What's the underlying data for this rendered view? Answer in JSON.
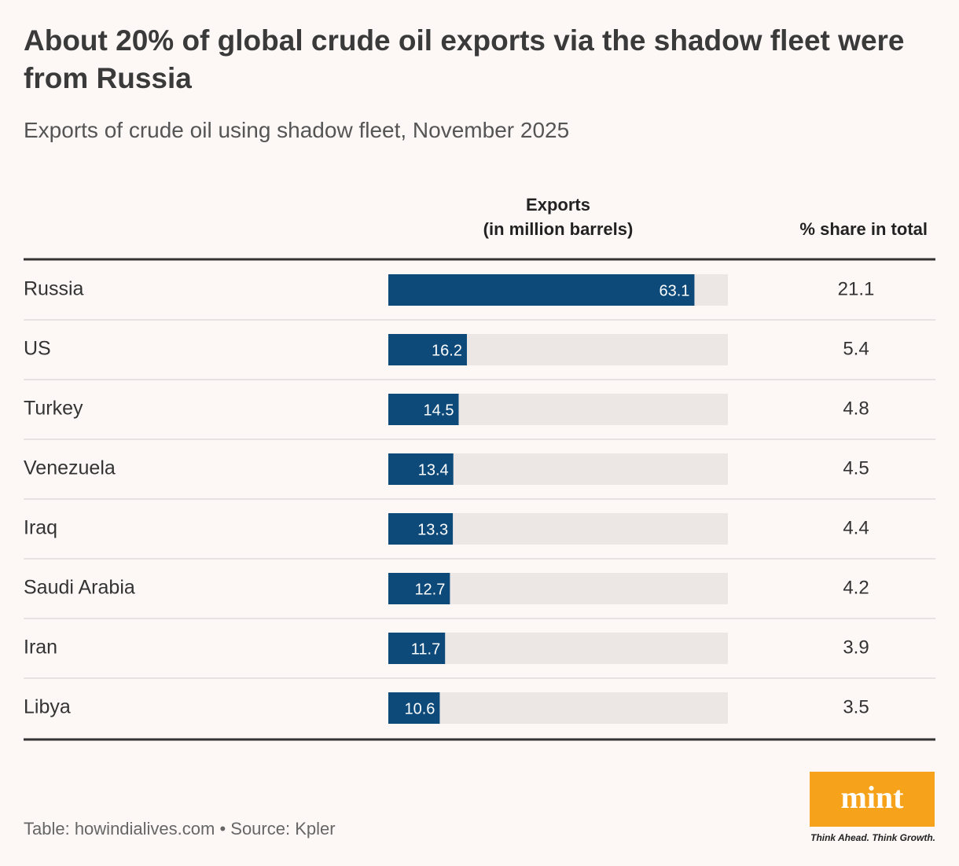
{
  "chart_data": {
    "type": "bar",
    "title": "About 20% of global crude oil exports via the shadow fleet were from Russia",
    "subtitle": "Exports of crude oil using shadow fleet, November 2025",
    "value_header": [
      "Exports",
      "(in million barrels)"
    ],
    "share_header": "% share in total",
    "categories": [
      "Russia",
      "US",
      "Turkey",
      "Venezuela",
      "Iraq",
      "Saudi Arabia",
      "Iran",
      "Libya"
    ],
    "values": [
      63.1,
      16.2,
      14.5,
      13.4,
      13.3,
      12.7,
      11.7,
      10.6
    ],
    "shares": [
      21.1,
      5.4,
      4.8,
      4.5,
      4.4,
      4.2,
      3.9,
      3.5
    ],
    "color": "#0d4a7a",
    "track_color": "#ece6e5",
    "xlim": [
      0,
      70
    ],
    "footer": "Table: howindialives.com • Source: Kpler",
    "logo": {
      "name": "mint",
      "tagline": "Think Ahead. Think Growth."
    }
  }
}
